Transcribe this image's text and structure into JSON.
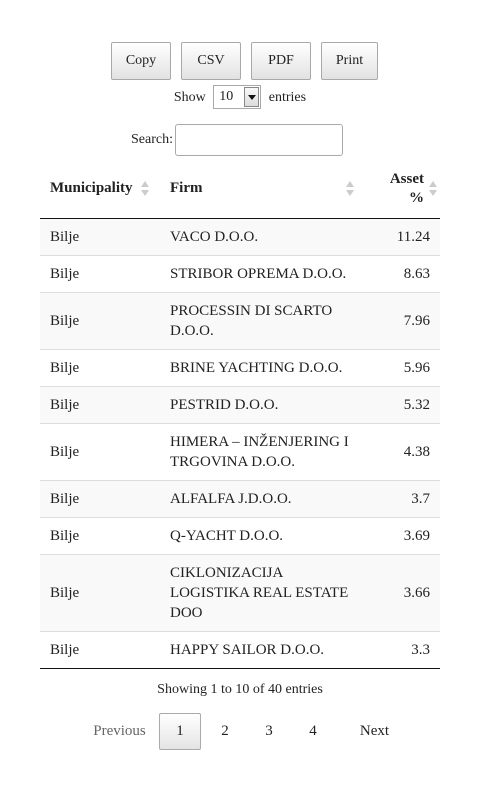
{
  "toolbar": {
    "copy_label": "Copy",
    "csv_label": "CSV",
    "pdf_label": "PDF",
    "print_label": "Print"
  },
  "length_menu": {
    "show_label": "Show",
    "selected": "10",
    "entries_label": "entries"
  },
  "search": {
    "label": "Search:",
    "value": ""
  },
  "table": {
    "headers": {
      "municipality": "Municipality",
      "firm": "Firm",
      "asset_line1": "Asset",
      "asset_line2": "%"
    },
    "rows": [
      {
        "municipality": "Bilje",
        "firm": "VACO D.O.O.",
        "asset": "11.24"
      },
      {
        "municipality": "Bilje",
        "firm": "STRIBOR OPREMA D.O.O.",
        "asset": "8.63"
      },
      {
        "municipality": "Bilje",
        "firm_line1": "PROCESSIN DI SCARTO",
        "firm_line2": "D.O.O.",
        "asset": "7.96"
      },
      {
        "municipality": "Bilje",
        "firm": "BRINE YACHTING D.O.O.",
        "asset": "5.96"
      },
      {
        "municipality": "Bilje",
        "firm": "PESTRID D.O.O.",
        "asset": "5.32"
      },
      {
        "municipality": "Bilje",
        "firm_line1": "HIMERA – INŽENJERING I",
        "firm_line2": "TRGOVINA D.O.O.",
        "asset": "4.38"
      },
      {
        "municipality": "Bilje",
        "firm": "ALFALFA J.D.O.O.",
        "asset": "3.7"
      },
      {
        "municipality": "Bilje",
        "firm": "Q-YACHT D.O.O.",
        "asset": "3.69"
      },
      {
        "municipality": "Bilje",
        "firm_line1": "CIKLONIZACIJA",
        "firm_line2": "LOGISTIKA REAL ESTATE",
        "firm_line3": "DOO",
        "asset": "3.66"
      },
      {
        "municipality": "Bilje",
        "firm": "HAPPY SAILOR D.O.O.",
        "asset": "3.3"
      }
    ]
  },
  "info": "Showing 1 to 10 of 40 entries",
  "pagination": {
    "previous": "Previous",
    "pages": [
      "1",
      "2",
      "3",
      "4"
    ],
    "current": "1",
    "next": "Next"
  }
}
